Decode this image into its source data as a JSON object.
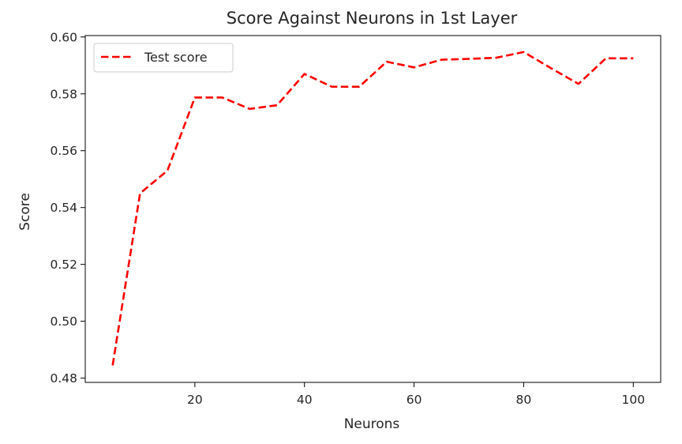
{
  "chart_data": {
    "type": "line",
    "title": "Score Against Neurons in 1st Layer",
    "xlabel": "Neurons",
    "ylabel": "Score",
    "xlim": [
      0,
      105
    ],
    "ylim": [
      0.4785,
      0.6005
    ],
    "xticks": [
      20,
      40,
      60,
      80,
      100
    ],
    "xtick_labels": [
      "20",
      "40",
      "60",
      "80",
      "100"
    ],
    "yticks": [
      0.48,
      0.5,
      0.52,
      0.54,
      0.56,
      0.58,
      0.6
    ],
    "ytick_labels": [
      "0.48",
      "0.50",
      "0.52",
      "0.54",
      "0.56",
      "0.58",
      "0.60"
    ],
    "grid": false,
    "legend_position": "upper-left",
    "x": [
      5,
      10,
      15,
      20,
      25,
      30,
      35,
      40,
      45,
      50,
      55,
      60,
      65,
      70,
      75,
      80,
      85,
      90,
      95,
      100
    ],
    "series": [
      {
        "name": "Test score",
        "color": "#ff0000",
        "line_style": "dashed",
        "values": [
          0.4845,
          0.545,
          0.553,
          0.5787,
          0.5787,
          0.5747,
          0.576,
          0.587,
          0.5825,
          0.5825,
          0.5913,
          0.5893,
          0.592,
          0.5923,
          0.5927,
          0.5947,
          0.589,
          0.5835,
          0.5925,
          0.5925
        ]
      }
    ]
  }
}
